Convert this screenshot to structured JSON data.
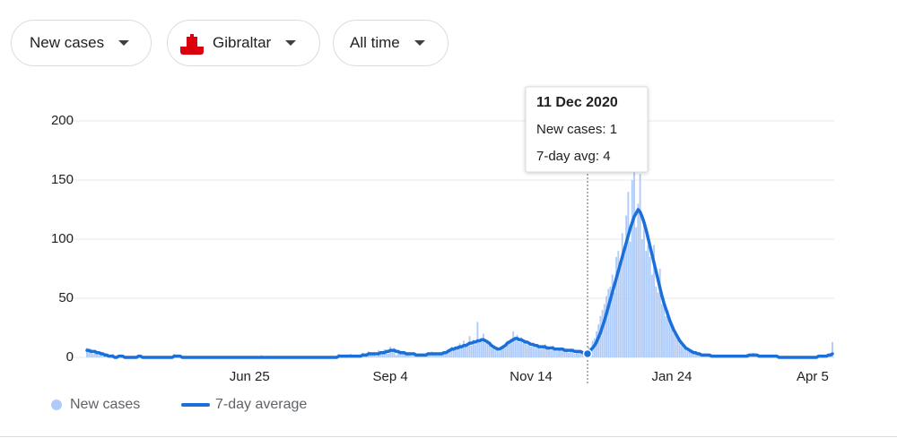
{
  "controls": {
    "metric": "New cases",
    "region": "Gibraltar",
    "range": "All time"
  },
  "chart_data": {
    "type": "bar",
    "categories": [
      null,
      null,
      null,
      null,
      null,
      null,
      null,
      null,
      null,
      null,
      null,
      null,
      null,
      null,
      null,
      null,
      null,
      null,
      null,
      null,
      null,
      null,
      null,
      null,
      null,
      null,
      null,
      null,
      null,
      null,
      null,
      null,
      null,
      null,
      null,
      null,
      null,
      null,
      null,
      null,
      null,
      null,
      null,
      null,
      null,
      null,
      null,
      null,
      null,
      null,
      null,
      null,
      null,
      null,
      null,
      null,
      null,
      null,
      null,
      null,
      null,
      null,
      null,
      null,
      null,
      null,
      null,
      null,
      null,
      null,
      null,
      null,
      null,
      null,
      null,
      null,
      null,
      null,
      null,
      null,
      null,
      null,
      "Jun 25",
      null,
      null,
      null,
      null,
      null,
      null,
      null,
      null,
      null,
      null,
      null,
      null,
      null,
      null,
      null,
      null,
      null,
      null,
      null,
      null,
      null,
      null,
      null,
      null,
      null,
      null,
      null,
      null,
      null,
      null,
      null,
      null,
      null,
      null,
      null,
      null,
      null,
      null,
      null,
      null,
      null,
      null,
      null,
      null,
      null,
      null,
      null,
      null,
      null,
      null,
      null,
      null,
      null,
      null,
      null,
      null,
      null,
      null,
      null,
      null,
      null,
      null,
      null,
      null,
      null,
      null,
      null,
      null,
      null,
      null,
      "Sep 4",
      null,
      null,
      null,
      null,
      null,
      null,
      null,
      null,
      null,
      null,
      null,
      null,
      null,
      null,
      null,
      null,
      null,
      null,
      null,
      null,
      null,
      null,
      null,
      null,
      null,
      null,
      null,
      null,
      null,
      null,
      null,
      null,
      null,
      null,
      null,
      null,
      null,
      null,
      null,
      null,
      null,
      null,
      null,
      null,
      null,
      null,
      null,
      null,
      null,
      null,
      null,
      null,
      null,
      null,
      null,
      null,
      null,
      null,
      null,
      null,
      null,
      null,
      null,
      null,
      null,
      null,
      null,
      null,
      null,
      null,
      "Nov 14",
      null,
      null,
      null,
      null,
      null,
      null,
      null,
      null,
      null,
      null,
      null,
      null,
      null,
      null,
      null,
      null,
      null,
      null,
      null,
      null,
      null,
      null,
      null,
      null,
      null,
      null,
      null,
      null,
      null,
      null,
      null,
      null,
      null,
      null,
      null,
      null,
      null,
      null,
      null,
      null,
      null,
      null,
      null,
      null,
      null,
      null,
      null,
      null,
      null,
      null,
      null,
      null,
      null,
      null,
      null,
      null,
      null,
      null,
      null,
      null,
      null,
      null,
      null,
      null,
      null,
      null,
      null,
      null,
      null,
      null,
      "Jan 24",
      null,
      null,
      null,
      null,
      null,
      null,
      null,
      null,
      null,
      null,
      null,
      null,
      null,
      null,
      null,
      null,
      null,
      null,
      null,
      null,
      null,
      null,
      null,
      null,
      null,
      null,
      null,
      null,
      null,
      null,
      null,
      null,
      null,
      null,
      null,
      null,
      null,
      null,
      null,
      null,
      null,
      null,
      null,
      null,
      null,
      null,
      null,
      null,
      null,
      null,
      null,
      null,
      null,
      null,
      null,
      null,
      null,
      null,
      null,
      null,
      null,
      null,
      null,
      null,
      null,
      null,
      null,
      null,
      null,
      null,
      "Apr 5",
      null,
      null,
      null,
      null,
      null,
      null,
      null,
      null,
      null,
      null
    ],
    "series": [
      {
        "name": "New cases",
        "color": "#aecbfa",
        "values": [
          8,
          5,
          7,
          3,
          6,
          4,
          2,
          5,
          1,
          3,
          2,
          0,
          1,
          3,
          0,
          0,
          2,
          1,
          0,
          0,
          0,
          0,
          0,
          0,
          0,
          0,
          2,
          1,
          0,
          0,
          0,
          0,
          0,
          0,
          0,
          0,
          0,
          0,
          0,
          0,
          0,
          0,
          0,
          0,
          3,
          0,
          2,
          0,
          0,
          0,
          0,
          0,
          1,
          0,
          0,
          0,
          0,
          0,
          0,
          0,
          0,
          0,
          0,
          0,
          0,
          0,
          0,
          0,
          0,
          0,
          0,
          0,
          0,
          0,
          0,
          0,
          0,
          0,
          0,
          0,
          0,
          0,
          0,
          0,
          0,
          0,
          0,
          0,
          2,
          0,
          0,
          0,
          0,
          0,
          0,
          0,
          0,
          0,
          0,
          0,
          0,
          0,
          0,
          0,
          0,
          0,
          0,
          0,
          0,
          0,
          0,
          0,
          0,
          0,
          0,
          1,
          0,
          0,
          0,
          0,
          0,
          0,
          0,
          0,
          0,
          0,
          0,
          3,
          0,
          1,
          2,
          0,
          1,
          3,
          0,
          1,
          0,
          2,
          1,
          4,
          2,
          1,
          5,
          3,
          2,
          4,
          1,
          6,
          3,
          5,
          7,
          4,
          3,
          9,
          6,
          8,
          2,
          5,
          4,
          3,
          5,
          2,
          4,
          3,
          1,
          4,
          2,
          3,
          1,
          2,
          3,
          1,
          4,
          2,
          5,
          3,
          2,
          4,
          3,
          2,
          5,
          3,
          7,
          6,
          9,
          8,
          7,
          10,
          12,
          8,
          14,
          9,
          12,
          18,
          10,
          15,
          11,
          30,
          13,
          16,
          20,
          12,
          15,
          11,
          8,
          10,
          6,
          9,
          5,
          7,
          10,
          8,
          14,
          12,
          16,
          22,
          15,
          19,
          13,
          17,
          12,
          15,
          11,
          13,
          9,
          12,
          8,
          11,
          10,
          7,
          9,
          11,
          7,
          8,
          6,
          10,
          7,
          5,
          8,
          6,
          8,
          5,
          7,
          4,
          6,
          7,
          3,
          6,
          5,
          4,
          3,
          1,
          6,
          9,
          8,
          14,
          16,
          22,
          28,
          35,
          40,
          45,
          52,
          58,
          60,
          70,
          55,
          85,
          90,
          76,
          105,
          88,
          120,
          140,
          98,
          150,
          160,
          110,
          130,
          155,
          100,
          115,
          90,
          95,
          85,
          70,
          95,
          60,
          55,
          75,
          45,
          50,
          35,
          40,
          30,
          25,
          20,
          18,
          15,
          12,
          10,
          8,
          7,
          5,
          6,
          4,
          3,
          5,
          2,
          3,
          2,
          1,
          3,
          2,
          1,
          2,
          0,
          1,
          2,
          1,
          1,
          0,
          2,
          1,
          0,
          1,
          2,
          1,
          0,
          1,
          2,
          0,
          1,
          3,
          2,
          1,
          4,
          2,
          1,
          0,
          1,
          2,
          0,
          1,
          1,
          0,
          2,
          1,
          0,
          0,
          0,
          0,
          0,
          0,
          0,
          0,
          0,
          0,
          0,
          0,
          0,
          0,
          0,
          0,
          0,
          0,
          0,
          0,
          0,
          2,
          1,
          0,
          2,
          1,
          3,
          2,
          13
        ]
      },
      {
        "name": "7-day average",
        "color": "#1a6fd9",
        "type": "line",
        "values": [
          6,
          6,
          5,
          5,
          5,
          4,
          4,
          3,
          3,
          2,
          2,
          1,
          1,
          1,
          0,
          0,
          1,
          1,
          1,
          0,
          0,
          0,
          0,
          0,
          0,
          0,
          1,
          1,
          0,
          0,
          0,
          0,
          0,
          0,
          0,
          0,
          0,
          0,
          0,
          0,
          0,
          0,
          0,
          0,
          1,
          1,
          1,
          1,
          0,
          0,
          0,
          0,
          0,
          0,
          0,
          0,
          0,
          0,
          0,
          0,
          0,
          0,
          0,
          0,
          0,
          0,
          0,
          0,
          0,
          0,
          0,
          0,
          0,
          0,
          0,
          0,
          0,
          0,
          0,
          0,
          0,
          0,
          0,
          0,
          0,
          0,
          0,
          0,
          0,
          0,
          0,
          0,
          0,
          0,
          0,
          0,
          0,
          0,
          0,
          0,
          0,
          0,
          0,
          0,
          0,
          0,
          0,
          0,
          0,
          0,
          0,
          0,
          0,
          0,
          0,
          0,
          0,
          0,
          0,
          0,
          0,
          0,
          0,
          0,
          0,
          0,
          0,
          1,
          1,
          1,
          1,
          1,
          1,
          1,
          1,
          1,
          1,
          1,
          1,
          2,
          2,
          2,
          3,
          3,
          3,
          3,
          3,
          3,
          4,
          4,
          4,
          5,
          5,
          6,
          6,
          6,
          5,
          5,
          4,
          4,
          4,
          3,
          3,
          3,
          3,
          3,
          2,
          2,
          2,
          2,
          2,
          2,
          3,
          3,
          3,
          3,
          3,
          3,
          3,
          3,
          4,
          4,
          5,
          6,
          7,
          7,
          8,
          8,
          9,
          9,
          10,
          10,
          11,
          12,
          12,
          13,
          13,
          14,
          14,
          15,
          15,
          14,
          13,
          12,
          10,
          9,
          8,
          7,
          7,
          8,
          9,
          10,
          12,
          13,
          14,
          15,
          16,
          16,
          15,
          15,
          14,
          13,
          13,
          12,
          11,
          11,
          10,
          10,
          9,
          9,
          9,
          9,
          8,
          8,
          8,
          8,
          7,
          7,
          7,
          7,
          7,
          6,
          6,
          6,
          6,
          6,
          5,
          5,
          5,
          5,
          4,
          4,
          4,
          5,
          6,
          8,
          10,
          13,
          17,
          21,
          26,
          31,
          37,
          43,
          49,
          55,
          61,
          67,
          73,
          79,
          85,
          91,
          97,
          103,
          109,
          114,
          119,
          122,
          125,
          123,
          119,
          114,
          108,
          101,
          94,
          87,
          80,
          73,
          66,
          59,
          52,
          46,
          41,
          36,
          31,
          27,
          23,
          20,
          17,
          14,
          12,
          10,
          8,
          7,
          6,
          5,
          4,
          4,
          3,
          3,
          2,
          2,
          2,
          2,
          2,
          1,
          1,
          1,
          1,
          1,
          1,
          1,
          1,
          1,
          1,
          1,
          1,
          1,
          1,
          1,
          1,
          1,
          1,
          1,
          2,
          2,
          2,
          2,
          2,
          1,
          1,
          1,
          1,
          1,
          1,
          1,
          1,
          1,
          1,
          0,
          0,
          0,
          0,
          0,
          0,
          0,
          0,
          0,
          0,
          0,
          0,
          0,
          0,
          0,
          0,
          0,
          0,
          0,
          0,
          1,
          1,
          1,
          1,
          1,
          2,
          2,
          3
        ]
      }
    ],
    "ylim": [
      0,
      200
    ],
    "yticks": [
      0,
      50,
      100,
      150,
      200
    ],
    "grid": true,
    "tooltip": {
      "title": "11 Dec 2020",
      "lines": [
        "New cases: 1",
        "7-day avg: 4"
      ]
    }
  }
}
